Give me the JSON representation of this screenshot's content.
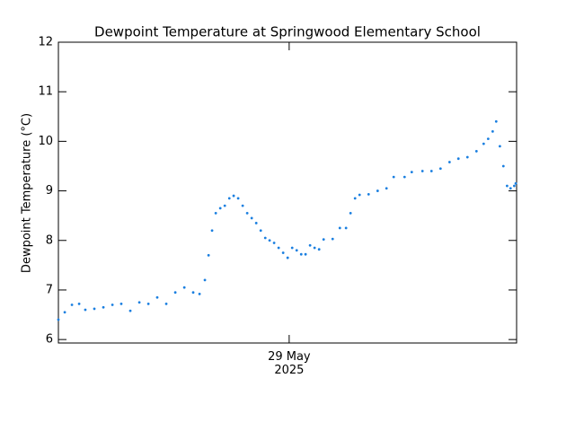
{
  "chart_data": {
    "type": "scatter",
    "title": "Dewpoint Temperature at Springwood Elementary School",
    "y_label": "Dewpoint Temperature (°C)",
    "color": "#1a7fe0",
    "xlim": [
      27.62,
      30.36
    ],
    "xticks": [
      {
        "value": 29,
        "label": "29 May\n2025"
      }
    ],
    "ylim": [
      5.93,
      12
    ],
    "yticks": [
      6,
      7,
      8,
      9,
      10,
      11,
      12
    ],
    "x": [
      27.62,
      27.658,
      27.701,
      27.744,
      27.781,
      27.835,
      27.889,
      27.943,
      27.996,
      28.05,
      28.104,
      28.158,
      28.211,
      28.265,
      28.319,
      28.373,
      28.426,
      28.464,
      28.496,
      28.518,
      28.539,
      28.561,
      28.588,
      28.615,
      28.642,
      28.668,
      28.695,
      28.722,
      28.749,
      28.776,
      28.803,
      28.83,
      28.857,
      28.883,
      28.91,
      28.937,
      28.964,
      28.991,
      29.018,
      29.045,
      29.072,
      29.098,
      29.125,
      29.152,
      29.179,
      29.206,
      29.26,
      29.303,
      29.34,
      29.367,
      29.394,
      29.421,
      29.475,
      29.529,
      29.582,
      29.625,
      29.69,
      29.733,
      29.797,
      29.851,
      29.905,
      29.959,
      30.012,
      30.066,
      30.12,
      30.163,
      30.19,
      30.217,
      30.238,
      30.26,
      30.281,
      30.303,
      30.324,
      30.346,
      30.355
    ],
    "values": [
      6.4,
      6.55,
      6.7,
      6.72,
      6.6,
      6.62,
      6.65,
      6.7,
      6.72,
      6.58,
      6.75,
      6.72,
      6.85,
      6.72,
      6.95,
      7.05,
      6.95,
      6.92,
      7.2,
      7.7,
      8.2,
      8.55,
      8.65,
      8.7,
      8.85,
      8.9,
      8.85,
      8.7,
      8.55,
      8.45,
      8.35,
      8.2,
      8.05,
      8.0,
      7.95,
      7.85,
      7.75,
      7.65,
      7.85,
      7.8,
      7.72,
      7.72,
      7.9,
      7.85,
      7.82,
      8.02,
      8.03,
      8.25,
      8.25,
      8.55,
      8.85,
      8.92,
      8.93,
      9.0,
      9.05,
      9.28,
      9.28,
      9.38,
      9.4,
      9.4,
      9.45,
      9.58,
      9.65,
      9.68,
      9.8,
      9.95,
      10.05,
      10.2,
      10.4,
      9.9,
      9.5,
      9.1,
      9.05,
      9.1,
      9.15
    ]
  }
}
